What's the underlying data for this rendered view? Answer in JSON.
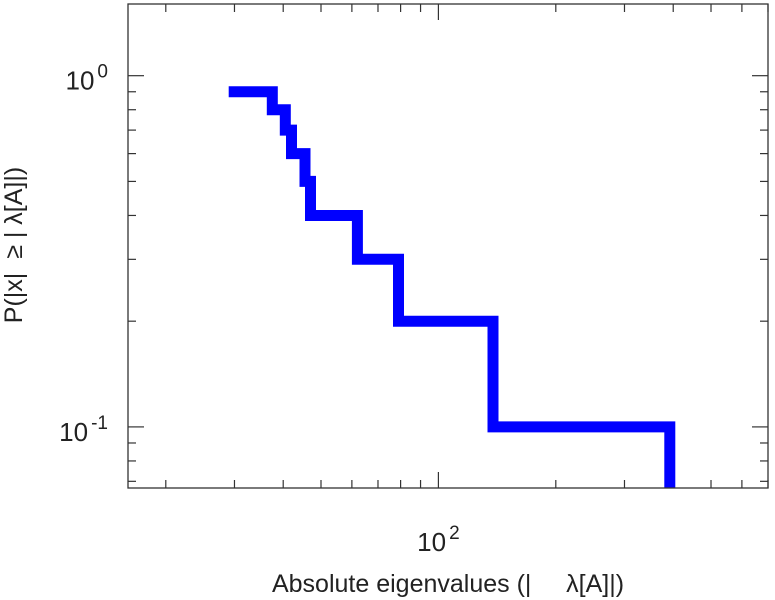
{
  "chart_data": {
    "type": "line",
    "subtype": "step-ccdf",
    "xscale": "log",
    "yscale": "log",
    "xlim": [
      16,
      700
    ],
    "ylim": [
      0.067,
      1.6
    ],
    "xlabel": "Absolute eigenvalues (|     λ[A]|)",
    "ylabel": "P(|x|  ≥ | λ[A]|)",
    "x_ticks": [
      {
        "value": 100,
        "base": "10",
        "exp": "2"
      }
    ],
    "y_ticks": [
      {
        "value": 1,
        "base": "10",
        "exp": "0"
      },
      {
        "value": 0.1,
        "base": "10",
        "exp": "-1"
      }
    ],
    "grid": false,
    "series": [
      {
        "color": "#0000ff",
        "x": [
          29,
          37.5,
          37.5,
          40.5,
          40.5,
          42,
          42,
          45.5,
          45.5,
          47,
          47,
          62,
          62,
          79,
          79,
          138,
          138,
          392,
          392
        ],
        "y": [
          0.9,
          0.9,
          0.8,
          0.8,
          0.7,
          0.7,
          0.6,
          0.6,
          0.5,
          0.5,
          0.4,
          0.4,
          0.3,
          0.3,
          0.2,
          0.2,
          0.1,
          0.1,
          0.067
        ]
      }
    ]
  }
}
